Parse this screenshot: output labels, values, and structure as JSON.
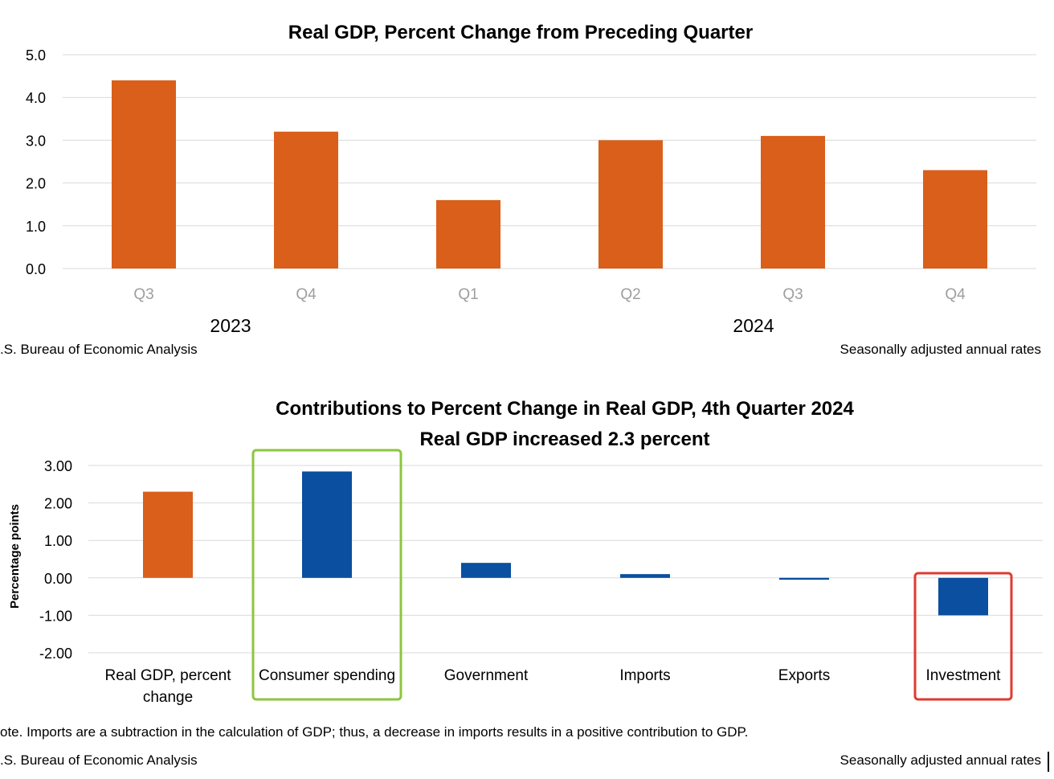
{
  "colors": {
    "orange": "#d95f1a",
    "blue": "#0a4fa0",
    "grid": "#d9d9d9",
    "tick_label": "#9e9e9e",
    "highlight_green": "#8cc63f",
    "highlight_red": "#e03a2f"
  },
  "chart_data": [
    {
      "type": "bar",
      "title": "Real GDP, Percent Change from Preceding Quarter",
      "categories": [
        "Q3",
        "Q4",
        "Q1",
        "Q2",
        "Q3",
        "Q4"
      ],
      "groups": [
        "2023",
        "2024"
      ],
      "values": [
        4.4,
        3.2,
        1.6,
        3.0,
        3.1,
        2.3
      ],
      "ylim": [
        0,
        5
      ],
      "yticks": [
        "0.0",
        "1.0",
        "2.0",
        "3.0",
        "4.0",
        "5.0"
      ],
      "grid": true,
      "source": ".S. Bureau of Economic Analysis",
      "note_right": "Seasonally adjusted annual rates"
    },
    {
      "type": "bar",
      "title": "Contributions to Percent Change in Real GDP, 4th Quarter 2024",
      "subtitle": "Real GDP increased 2.3 percent",
      "ylabel": "Percentage points",
      "categories": [
        "Real GDP, percent change",
        "Consumer spending",
        "Government",
        "Imports",
        "Exports",
        "Investment"
      ],
      "values": [
        2.3,
        2.84,
        0.4,
        0.1,
        -0.05,
        -1.0
      ],
      "bar_colors": [
        "orange",
        "blue",
        "blue",
        "blue",
        "blue",
        "blue"
      ],
      "highlighted": {
        "Consumer spending": "green",
        "Investment": "red"
      },
      "ylim": [
        -2,
        3
      ],
      "yticks": [
        "-2.00",
        "-1.00",
        "0.00",
        "1.00",
        "2.00",
        "3.00"
      ],
      "grid": true,
      "note": "ote. Imports are a subtraction in the calculation of GDP; thus, a decrease in imports results in a positive contribution to GDP.",
      "source": ".S. Bureau of Economic Analysis",
      "note_right": "Seasonally adjusted annual rates"
    }
  ]
}
